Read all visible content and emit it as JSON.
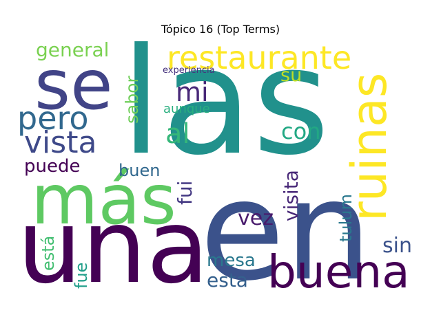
{
  "title": "Tópico 16 (Top Terms)",
  "chart_data": {
    "type": "wordcloud",
    "title": "Tópico 16 (Top Terms)",
    "colormap": "viridis",
    "background": "#ffffff",
    "words": [
      {
        "text": "las",
        "color": "#21918c"
      },
      {
        "text": "en",
        "color": "#3b528b"
      },
      {
        "text": "una",
        "color": "#440154"
      },
      {
        "text": "se",
        "color": "#414487"
      },
      {
        "text": "más",
        "color": "#5ec962"
      },
      {
        "text": "ruinas",
        "color": "#fde725"
      },
      {
        "text": "buena",
        "color": "#440154"
      },
      {
        "text": "restaurante",
        "color": "#fde725"
      },
      {
        "text": "pero",
        "color": "#31688e"
      },
      {
        "text": "vista",
        "color": "#3e4989"
      },
      {
        "text": "mi",
        "color": "#482878"
      },
      {
        "text": "al",
        "color": "#35b779"
      },
      {
        "text": "general",
        "color": "#7ad151"
      },
      {
        "text": "con",
        "color": "#22a884"
      },
      {
        "text": "su",
        "color": "#bddf26"
      },
      {
        "text": "sabor",
        "color": "#6ece58"
      },
      {
        "text": "aunque",
        "color": "#29af7f"
      },
      {
        "text": "experiencia",
        "color": "#46327e"
      },
      {
        "text": "puede",
        "color": "#440154"
      },
      {
        "text": "buen",
        "color": "#31688e"
      },
      {
        "text": "fui",
        "color": "#443983"
      },
      {
        "text": "visita",
        "color": "#482878"
      },
      {
        "text": "vez",
        "color": "#481a6c"
      },
      {
        "text": "tulum",
        "color": "#2a788e"
      },
      {
        "text": "sin",
        "color": "#3b528b"
      },
      {
        "text": "mesa",
        "color": "#2a788e"
      },
      {
        "text": "esta",
        "color": "#35608d"
      },
      {
        "text": "está",
        "color": "#42be71"
      },
      {
        "text": "fue",
        "color": "#1f9e89"
      }
    ]
  }
}
